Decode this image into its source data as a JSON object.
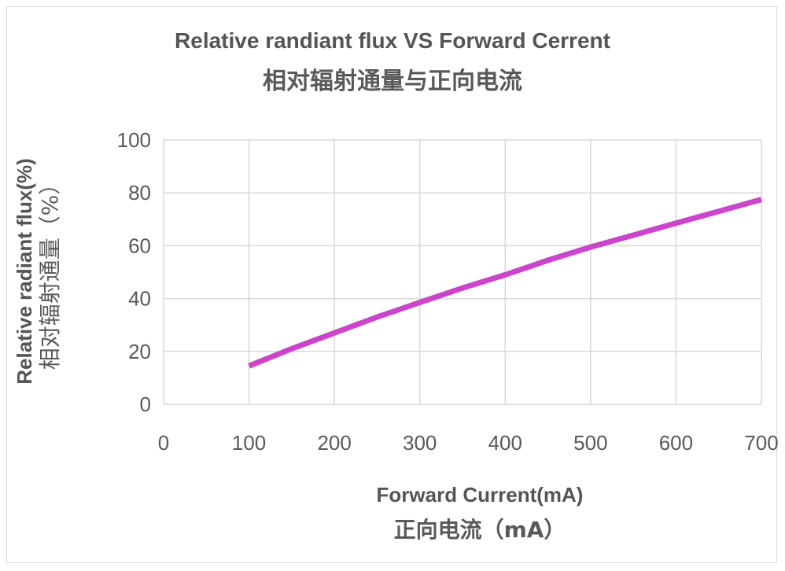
{
  "chart_data": {
    "type": "line",
    "title": "Relative randiant flux VS Forward Cerrent",
    "subtitle": "相对辐射通量与正向电流",
    "xlabel": "Forward Current(mA)",
    "xlabel_zh": "正向电流（mA）",
    "ylabel": "Relative radiant flux(%)",
    "ylabel_zh": "相对辐射通量（%）",
    "xlim": [
      0,
      700
    ],
    "ylim": [
      0,
      100
    ],
    "xticks": [
      0,
      100,
      200,
      300,
      400,
      500,
      600,
      700
    ],
    "yticks": [
      0,
      20,
      40,
      60,
      80,
      100
    ],
    "grid": true,
    "series": [
      {
        "color": "#cc44cc",
        "x": [
          100,
          150,
          200,
          250,
          300,
          350,
          400,
          450,
          500,
          550,
          600,
          650,
          700
        ],
        "y": [
          14.5,
          21,
          27,
          33,
          38.5,
          44,
          49,
          54.5,
          59.5,
          64,
          68.5,
          73,
          77.5
        ]
      }
    ]
  }
}
